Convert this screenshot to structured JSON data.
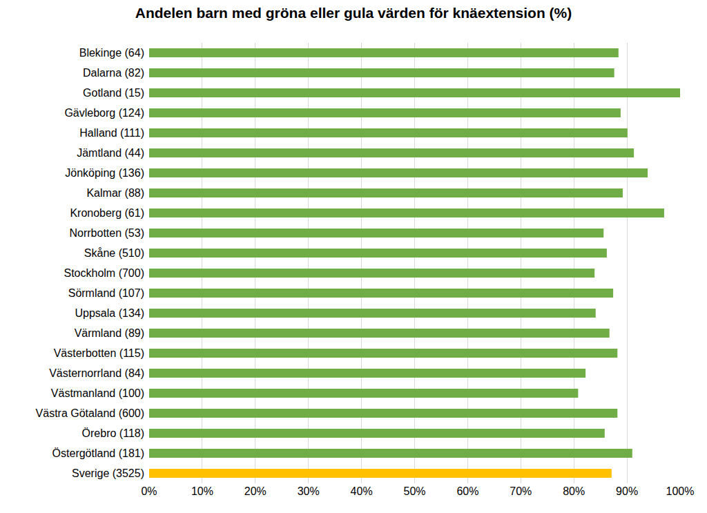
{
  "chart_data": {
    "type": "bar",
    "orientation": "horizontal",
    "title": "Andelen barn med gröna eller gula värden för knäextension (%)",
    "categories": [
      "Blekinge (64)",
      "Dalarna (82)",
      "Gotland (15)",
      "Gävleborg (124)",
      "Halland (111)",
      "Jämtland (44)",
      "Jönköping (136)",
      "Kalmar (88)",
      "Kronoberg (61)",
      "Norrbotten (53)",
      "Skåne (510)",
      "Stockholm (700)",
      "Sörmland (107)",
      "Uppsala (134)",
      "Värmland (89)",
      "Västerbotten (115)",
      "Västernorrland (84)",
      "Västmanland (100)",
      "Västra Götaland (600)",
      "Örebro (118)",
      "Östergötland (181)",
      "Sverige (3525)"
    ],
    "values": [
      88.4,
      87.6,
      100,
      88.8,
      90.1,
      91.3,
      93.9,
      89.2,
      97.0,
      85.6,
      86.2,
      83.9,
      87.4,
      84.1,
      86.7,
      88.2,
      82.2,
      80.8,
      88.2,
      85.8,
      91.0,
      87.1
    ],
    "colors": [
      "#70ad47",
      "#70ad47",
      "#70ad47",
      "#70ad47",
      "#70ad47",
      "#70ad47",
      "#70ad47",
      "#70ad47",
      "#70ad47",
      "#70ad47",
      "#70ad47",
      "#70ad47",
      "#70ad47",
      "#70ad47",
      "#70ad47",
      "#70ad47",
      "#70ad47",
      "#70ad47",
      "#70ad47",
      "#70ad47",
      "#70ad47",
      "#ffc000"
    ],
    "xlim": [
      0,
      100
    ],
    "xticks": [
      {
        "value": 0,
        "label": "0%"
      },
      {
        "value": 10,
        "label": "10%"
      },
      {
        "value": 20,
        "label": "20%"
      },
      {
        "value": 30,
        "label": "30%"
      },
      {
        "value": 40,
        "label": "40%"
      },
      {
        "value": 50,
        "label": "50%"
      },
      {
        "value": 60,
        "label": "60%"
      },
      {
        "value": 70,
        "label": "70%"
      },
      {
        "value": 80,
        "label": "80%"
      },
      {
        "value": 90,
        "label": "90%"
      },
      {
        "value": 100,
        "label": "100%"
      }
    ],
    "grid": true
  }
}
